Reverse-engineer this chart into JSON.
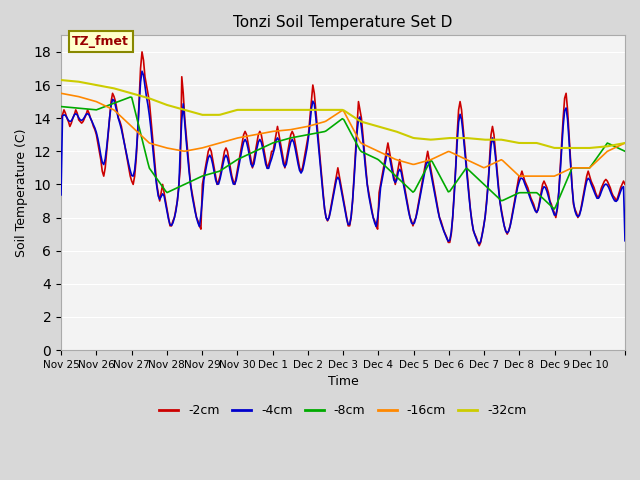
{
  "title": "Tonzi Soil Temperature Set D",
  "xlabel": "Time",
  "ylabel": "Soil Temperature (C)",
  "legend_label": "TZ_fmet",
  "ylim": [
    0,
    19
  ],
  "yticks": [
    0,
    2,
    4,
    6,
    8,
    10,
    12,
    14,
    16,
    18
  ],
  "tick_positions": [
    0,
    1,
    2,
    3,
    4,
    5,
    6,
    7,
    8,
    9,
    10,
    11,
    12,
    13,
    14,
    15,
    16
  ],
  "tick_labels": [
    "Nov 25",
    "Nov 26",
    "Nov 27",
    "Nov 28",
    "Nov 29",
    "Nov 30",
    "Dec 1",
    "Dec 2",
    "Dec 3",
    "Dec 4",
    "Dec 5",
    "Dec 6",
    "Dec 7",
    "Dec 8",
    "Dec 9",
    "Dec 10",
    ""
  ],
  "colors": {
    "cm2": "#cc0000",
    "cm4": "#0000cc",
    "cm8": "#00aa00",
    "cm16": "#ff8800",
    "cm32": "#cccc00"
  },
  "legend_colors": {
    "-2cm": "#cc0000",
    "-4cm": "#0000cc",
    "-8cm": "#00aa00",
    "-16cm": "#ff8800",
    "-32cm": "#cccc00"
  },
  "bg_color": "#d8d8d8",
  "axes_bg": "#e8e8e8",
  "grid_color": "#ffffff",
  "annotation_box_color": "#ffffcc",
  "annotation_text_color": "#990000",
  "annotation_border_color": "#888800"
}
